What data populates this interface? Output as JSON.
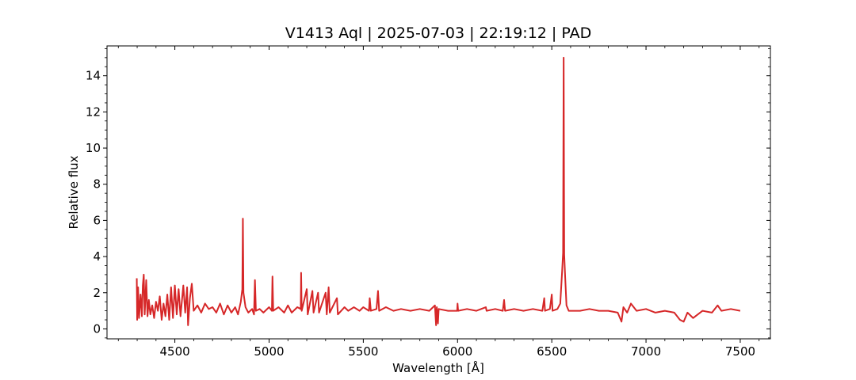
{
  "chart_data": {
    "type": "line",
    "title": "V1413 Aql | 2025-07-03 | 22:19:12 | PAD",
    "xlabel": "Wavelength [Å]",
    "ylabel": "Relative flux",
    "xlim": [
      4140,
      7660
    ],
    "ylim": [
      -0.55,
      15.65
    ],
    "x_ticks": [
      4500,
      5000,
      5500,
      6000,
      6500,
      7000,
      7500
    ],
    "y_ticks": [
      0,
      2,
      4,
      6,
      8,
      10,
      12,
      14
    ],
    "x_tick_labels": [
      "4500",
      "5000",
      "5500",
      "6000",
      "6500",
      "7000",
      "7500"
    ],
    "y_tick_labels": [
      "0",
      "2",
      "4",
      "6",
      "8",
      "10",
      "12",
      "14"
    ],
    "grid": false,
    "line_color": "#d62728",
    "series": [
      {
        "points": [
          [
            4298,
            2.8
          ],
          [
            4300,
            0.5
          ],
          [
            4305,
            2.3
          ],
          [
            4310,
            0.6
          ],
          [
            4318,
            1.9
          ],
          [
            4325,
            0.7
          ],
          [
            4330,
            2.4
          ],
          [
            4335,
            3.0
          ],
          [
            4340,
            0.8
          ],
          [
            4348,
            2.7
          ],
          [
            4355,
            0.7
          ],
          [
            4362,
            1.6
          ],
          [
            4370,
            0.8
          ],
          [
            4380,
            1.3
          ],
          [
            4390,
            0.6
          ],
          [
            4400,
            1.5
          ],
          [
            4410,
            1.0
          ],
          [
            4420,
            1.8
          ],
          [
            4430,
            0.5
          ],
          [
            4440,
            1.4
          ],
          [
            4450,
            0.7
          ],
          [
            4460,
            1.9
          ],
          [
            4470,
            0.5
          ],
          [
            4480,
            2.3
          ],
          [
            4490,
            0.6
          ],
          [
            4500,
            2.4
          ],
          [
            4510,
            0.8
          ],
          [
            4520,
            2.2
          ],
          [
            4530,
            0.7
          ],
          [
            4545,
            2.4
          ],
          [
            4555,
            0.9
          ],
          [
            4565,
            2.3
          ],
          [
            4570,
            0.2
          ],
          [
            4580,
            1.7
          ],
          [
            4590,
            2.5
          ],
          [
            4600,
            1.0
          ],
          [
            4620,
            1.3
          ],
          [
            4640,
            0.9
          ],
          [
            4660,
            1.4
          ],
          [
            4680,
            1.1
          ],
          [
            4700,
            1.2
          ],
          [
            4720,
            0.9
          ],
          [
            4740,
            1.4
          ],
          [
            4760,
            0.8
          ],
          [
            4780,
            1.3
          ],
          [
            4800,
            0.9
          ],
          [
            4820,
            1.2
          ],
          [
            4835,
            0.8
          ],
          [
            4850,
            1.5
          ],
          [
            4858,
            2.2
          ],
          [
            4861,
            6.1
          ],
          [
            4864,
            2.0
          ],
          [
            4875,
            1.2
          ],
          [
            4890,
            0.9
          ],
          [
            4910,
            1.1
          ],
          [
            4920,
            0.8
          ],
          [
            4925,
            2.7
          ],
          [
            4930,
            1.0
          ],
          [
            4950,
            1.1
          ],
          [
            4970,
            0.9
          ],
          [
            5000,
            1.2
          ],
          [
            5015,
            1.0
          ],
          [
            5018,
            2.9
          ],
          [
            5022,
            1.0
          ],
          [
            5050,
            1.2
          ],
          [
            5080,
            0.9
          ],
          [
            5100,
            1.3
          ],
          [
            5120,
            0.9
          ],
          [
            5150,
            1.2
          ],
          [
            5168,
            1.1
          ],
          [
            5170,
            3.1
          ],
          [
            5173,
            1.0
          ],
          [
            5200,
            2.2
          ],
          [
            5205,
            0.8
          ],
          [
            5230,
            2.1
          ],
          [
            5236,
            0.9
          ],
          [
            5260,
            2.0
          ],
          [
            5265,
            0.9
          ],
          [
            5300,
            2.0
          ],
          [
            5306,
            0.8
          ],
          [
            5316,
            2.3
          ],
          [
            5322,
            0.9
          ],
          [
            5360,
            1.7
          ],
          [
            5365,
            0.8
          ],
          [
            5400,
            1.2
          ],
          [
            5420,
            1.0
          ],
          [
            5450,
            1.2
          ],
          [
            5480,
            1.0
          ],
          [
            5500,
            1.2
          ],
          [
            5530,
            1.0
          ],
          [
            5534,
            1.7
          ],
          [
            5540,
            1.0
          ],
          [
            5570,
            1.1
          ],
          [
            5578,
            2.1
          ],
          [
            5584,
            1.0
          ],
          [
            5620,
            1.2
          ],
          [
            5660,
            1.0
          ],
          [
            5700,
            1.1
          ],
          [
            5750,
            1.0
          ],
          [
            5800,
            1.1
          ],
          [
            5850,
            1.0
          ],
          [
            5880,
            1.3
          ],
          [
            5886,
            0.2
          ],
          [
            5890,
            1.2
          ],
          [
            5896,
            0.3
          ],
          [
            5900,
            1.1
          ],
          [
            5950,
            1.0
          ],
          [
            5998,
            1.0
          ],
          [
            6000,
            1.4
          ],
          [
            6003,
            1.0
          ],
          [
            6050,
            1.1
          ],
          [
            6100,
            1.0
          ],
          [
            6150,
            1.2
          ],
          [
            6154,
            1.0
          ],
          [
            6200,
            1.1
          ],
          [
            6240,
            1.0
          ],
          [
            6247,
            1.6
          ],
          [
            6252,
            1.0
          ],
          [
            6300,
            1.1
          ],
          [
            6350,
            1.0
          ],
          [
            6400,
            1.1
          ],
          [
            6450,
            1.0
          ],
          [
            6460,
            1.7
          ],
          [
            6464,
            1.0
          ],
          [
            6490,
            1.1
          ],
          [
            6500,
            1.9
          ],
          [
            6504,
            1.0
          ],
          [
            6530,
            1.1
          ],
          [
            6545,
            1.4
          ],
          [
            6555,
            3.2
          ],
          [
            6560,
            4.2
          ],
          [
            6563,
            15.0
          ],
          [
            6566,
            4.1
          ],
          [
            6570,
            3.1
          ],
          [
            6578,
            1.3
          ],
          [
            6590,
            1.0
          ],
          [
            6650,
            1.0
          ],
          [
            6700,
            1.1
          ],
          [
            6750,
            1.0
          ],
          [
            6800,
            1.0
          ],
          [
            6850,
            0.9
          ],
          [
            6870,
            0.4
          ],
          [
            6880,
            1.2
          ],
          [
            6900,
            0.9
          ],
          [
            6920,
            1.4
          ],
          [
            6950,
            1.0
          ],
          [
            7000,
            1.1
          ],
          [
            7050,
            0.9
          ],
          [
            7100,
            1.0
          ],
          [
            7150,
            0.9
          ],
          [
            7180,
            0.5
          ],
          [
            7200,
            0.4
          ],
          [
            7220,
            0.9
          ],
          [
            7250,
            0.6
          ],
          [
            7300,
            1.0
          ],
          [
            7350,
            0.9
          ],
          [
            7380,
            1.3
          ],
          [
            7400,
            1.0
          ],
          [
            7450,
            1.1
          ],
          [
            7500,
            1.0
          ]
        ]
      }
    ]
  }
}
